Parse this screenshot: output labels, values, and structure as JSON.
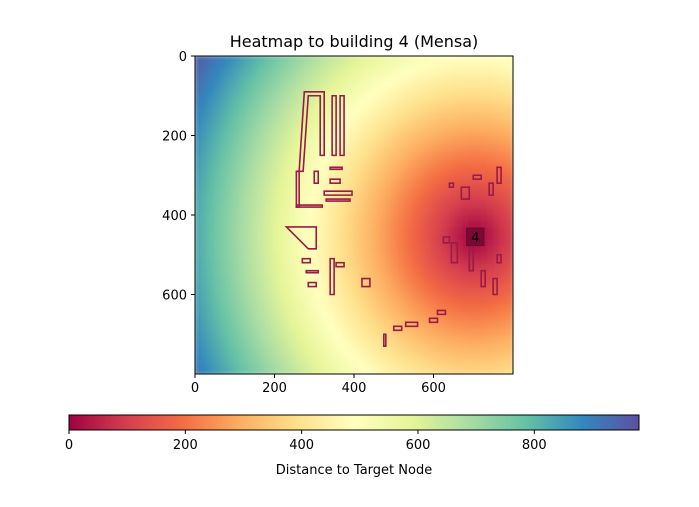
{
  "chart_data": {
    "type": "heatmap",
    "title": "Heatmap to building 4 (Mensa)",
    "x_ticks": [
      0,
      200,
      400,
      600
    ],
    "y_ticks": [
      0,
      200,
      400,
      600
    ],
    "xlim": [
      0,
      800
    ],
    "ylim": [
      800,
      0
    ],
    "target": {
      "label": "4",
      "x": 705,
      "y": 455
    },
    "colorbar": {
      "label": "Distance to Target Node",
      "ticks": [
        0,
        200,
        400,
        600,
        800
      ],
      "range": [
        0,
        980
      ],
      "colormap": "Spectral",
      "colors": [
        "#9e0142",
        "#d53e4f",
        "#f46d43",
        "#fdae61",
        "#fee08b",
        "#ffffbf",
        "#e6f598",
        "#abdda4",
        "#66c2a5",
        "#3288bd",
        "#5e4fa2"
      ]
    },
    "outline_color": "#9b1a47",
    "buildings": [
      [
        [
          262,
          290
        ],
        [
          275,
          90
        ],
        [
          325,
          90
        ],
        [
          325,
          250
        ],
        [
          315,
          250
        ],
        [
          315,
          100
        ],
        [
          285,
          100
        ],
        [
          272,
          290
        ]
      ],
      [
        [
          345,
          100
        ],
        [
          355,
          100
        ],
        [
          355,
          250
        ],
        [
          345,
          250
        ]
      ],
      [
        [
          365,
          100
        ],
        [
          375,
          100
        ],
        [
          375,
          250
        ],
        [
          365,
          250
        ]
      ],
      [
        [
          255,
          290
        ],
        [
          262,
          290
        ],
        [
          262,
          380
        ],
        [
          255,
          380
        ]
      ],
      [
        [
          255,
          375
        ],
        [
          320,
          375
        ],
        [
          320,
          380
        ],
        [
          255,
          380
        ]
      ],
      [
        [
          300,
          290
        ],
        [
          310,
          290
        ],
        [
          310,
          320
        ],
        [
          300,
          320
        ]
      ],
      [
        [
          340,
          280
        ],
        [
          370,
          280
        ],
        [
          370,
          285
        ],
        [
          340,
          285
        ]
      ],
      [
        [
          340,
          310
        ],
        [
          365,
          310
        ],
        [
          365,
          320
        ],
        [
          340,
          320
        ]
      ],
      [
        [
          325,
          340
        ],
        [
          395,
          340
        ],
        [
          395,
          350
        ],
        [
          325,
          350
        ]
      ],
      [
        [
          330,
          360
        ],
        [
          390,
          360
        ],
        [
          390,
          365
        ],
        [
          330,
          365
        ]
      ],
      [
        [
          230,
          430
        ],
        [
          305,
          430
        ],
        [
          305,
          485
        ],
        [
          285,
          485
        ]
      ],
      [
        [
          270,
          510
        ],
        [
          290,
          510
        ],
        [
          290,
          520
        ],
        [
          270,
          520
        ]
      ],
      [
        [
          280,
          540
        ],
        [
          310,
          540
        ],
        [
          310,
          545
        ],
        [
          280,
          545
        ]
      ],
      [
        [
          285,
          570
        ],
        [
          305,
          570
        ],
        [
          305,
          580
        ],
        [
          285,
          580
        ]
      ],
      [
        [
          340,
          510
        ],
        [
          350,
          510
        ],
        [
          350,
          600
        ],
        [
          340,
          600
        ]
      ],
      [
        [
          355,
          520
        ],
        [
          375,
          520
        ],
        [
          375,
          530
        ],
        [
          355,
          530
        ]
      ],
      [
        [
          420,
          560
        ],
        [
          440,
          560
        ],
        [
          440,
          580
        ],
        [
          420,
          580
        ]
      ],
      [
        [
          475,
          700
        ],
        [
          480,
          700
        ],
        [
          480,
          730
        ],
        [
          475,
          730
        ]
      ],
      [
        [
          500,
          680
        ],
        [
          520,
          680
        ],
        [
          520,
          690
        ],
        [
          500,
          690
        ]
      ],
      [
        [
          530,
          670
        ],
        [
          560,
          670
        ],
        [
          560,
          680
        ],
        [
          530,
          680
        ]
      ],
      [
        [
          590,
          660
        ],
        [
          610,
          660
        ],
        [
          610,
          670
        ],
        [
          590,
          670
        ]
      ],
      [
        [
          610,
          640
        ],
        [
          630,
          640
        ],
        [
          630,
          650
        ],
        [
          610,
          650
        ]
      ],
      [
        [
          640,
          320
        ],
        [
          650,
          320
        ],
        [
          650,
          330
        ],
        [
          640,
          330
        ]
      ],
      [
        [
          670,
          330
        ],
        [
          690,
          330
        ],
        [
          690,
          360
        ],
        [
          670,
          360
        ]
      ],
      [
        [
          700,
          300
        ],
        [
          720,
          300
        ],
        [
          720,
          310
        ],
        [
          700,
          310
        ]
      ],
      [
        [
          740,
          320
        ],
        [
          750,
          320
        ],
        [
          750,
          350
        ],
        [
          740,
          350
        ]
      ],
      [
        [
          760,
          280
        ],
        [
          770,
          280
        ],
        [
          770,
          320
        ],
        [
          760,
          320
        ]
      ],
      [
        [
          625,
          455
        ],
        [
          640,
          455
        ],
        [
          640,
          470
        ],
        [
          625,
          470
        ]
      ],
      [
        [
          645,
          470
        ],
        [
          660,
          470
        ],
        [
          660,
          520
        ],
        [
          645,
          520
        ]
      ],
      [
        [
          690,
          480
        ],
        [
          700,
          480
        ],
        [
          700,
          540
        ],
        [
          690,
          540
        ]
      ],
      [
        [
          720,
          540
        ],
        [
          730,
          540
        ],
        [
          730,
          580
        ],
        [
          720,
          580
        ]
      ],
      [
        [
          760,
          500
        ],
        [
          770,
          500
        ],
        [
          770,
          520
        ],
        [
          760,
          520
        ]
      ],
      [
        [
          750,
          560
        ],
        [
          760,
          560
        ],
        [
          760,
          600
        ],
        [
          750,
          600
        ]
      ]
    ]
  }
}
